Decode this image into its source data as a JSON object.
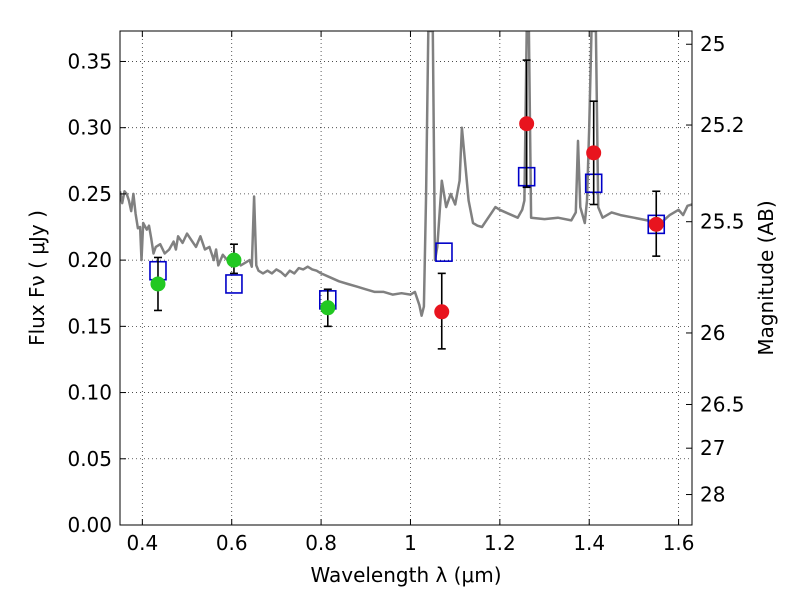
{
  "chart_data": {
    "type": "scatter",
    "xlabel": "Wavelength  λ (μm)",
    "ylabel": "Flux  Fν  ( μJy )",
    "y2label": "Magnitude (AB)",
    "xlim": [
      0.35,
      1.63
    ],
    "ylim": [
      0.0,
      0.373
    ],
    "grid": true,
    "x_ticks": [
      {
        "v": 0.4,
        "label": "0.4"
      },
      {
        "v": 0.6,
        "label": "0.6"
      },
      {
        "v": 0.8,
        "label": "0.8"
      },
      {
        "v": 1.0,
        "label": "1"
      },
      {
        "v": 1.2,
        "label": "1.2"
      },
      {
        "v": 1.4,
        "label": "1.4"
      },
      {
        "v": 1.6,
        "label": "1.6"
      }
    ],
    "y_ticks": [
      {
        "v": 0.0,
        "label": "0.00"
      },
      {
        "v": 0.05,
        "label": "0.05"
      },
      {
        "v": 0.1,
        "label": "0.10"
      },
      {
        "v": 0.15,
        "label": "0.15"
      },
      {
        "v": 0.2,
        "label": "0.20"
      },
      {
        "v": 0.25,
        "label": "0.25"
      },
      {
        "v": 0.3,
        "label": "0.30"
      },
      {
        "v": 0.35,
        "label": "0.35"
      }
    ],
    "y2_ticks": [
      {
        "flux": 0.363,
        "label": "25"
      },
      {
        "flux": 0.302,
        "label": "25.2"
      },
      {
        "flux": 0.229,
        "label": "25.5"
      },
      {
        "flux": 0.145,
        "label": "26"
      },
      {
        "flux": 0.091,
        "label": "26.5"
      },
      {
        "flux": 0.058,
        "label": "27"
      },
      {
        "flux": 0.023,
        "label": "28"
      }
    ],
    "series": [
      {
        "kind": "line",
        "color": "#808080",
        "points": [
          [
            0.35,
            0.252
          ],
          [
            0.355,
            0.243
          ],
          [
            0.36,
            0.252
          ],
          [
            0.365,
            0.25
          ],
          [
            0.37,
            0.245
          ],
          [
            0.375,
            0.237
          ],
          [
            0.38,
            0.25
          ],
          [
            0.385,
            0.235
          ],
          [
            0.39,
            0.224
          ],
          [
            0.395,
            0.225
          ],
          [
            0.398,
            0.2
          ],
          [
            0.402,
            0.228
          ],
          [
            0.41,
            0.223
          ],
          [
            0.415,
            0.226
          ],
          [
            0.42,
            0.216
          ],
          [
            0.425,
            0.205
          ],
          [
            0.43,
            0.21
          ],
          [
            0.44,
            0.212
          ],
          [
            0.45,
            0.205
          ],
          [
            0.46,
            0.208
          ],
          [
            0.47,
            0.214
          ],
          [
            0.475,
            0.208
          ],
          [
            0.48,
            0.218
          ],
          [
            0.49,
            0.213
          ],
          [
            0.5,
            0.22
          ],
          [
            0.51,
            0.215
          ],
          [
            0.52,
            0.21
          ],
          [
            0.53,
            0.218
          ],
          [
            0.54,
            0.208
          ],
          [
            0.55,
            0.21
          ],
          [
            0.56,
            0.2
          ],
          [
            0.565,
            0.208
          ],
          [
            0.57,
            0.196
          ],
          [
            0.58,
            0.204
          ],
          [
            0.59,
            0.2
          ],
          [
            0.6,
            0.198
          ],
          [
            0.61,
            0.202
          ],
          [
            0.62,
            0.196
          ],
          [
            0.63,
            0.198
          ],
          [
            0.64,
            0.2
          ],
          [
            0.645,
            0.195
          ],
          [
            0.65,
            0.248
          ],
          [
            0.655,
            0.196
          ],
          [
            0.66,
            0.192
          ],
          [
            0.67,
            0.19
          ],
          [
            0.68,
            0.192
          ],
          [
            0.69,
            0.19
          ],
          [
            0.7,
            0.193
          ],
          [
            0.71,
            0.191
          ],
          [
            0.72,
            0.188
          ],
          [
            0.73,
            0.192
          ],
          [
            0.74,
            0.19
          ],
          [
            0.75,
            0.194
          ],
          [
            0.76,
            0.193
          ],
          [
            0.77,
            0.195
          ],
          [
            0.78,
            0.193
          ],
          [
            0.79,
            0.192
          ],
          [
            0.8,
            0.19
          ],
          [
            0.82,
            0.187
          ],
          [
            0.84,
            0.184
          ],
          [
            0.86,
            0.182
          ],
          [
            0.88,
            0.18
          ],
          [
            0.9,
            0.178
          ],
          [
            0.92,
            0.176
          ],
          [
            0.94,
            0.176
          ],
          [
            0.96,
            0.174
          ],
          [
            0.98,
            0.175
          ],
          [
            1.0,
            0.174
          ],
          [
            1.01,
            0.176
          ],
          [
            1.02,
            0.166
          ],
          [
            1.025,
            0.158
          ],
          [
            1.03,
            0.165
          ],
          [
            1.035,
            0.25
          ],
          [
            1.04,
            0.373
          ],
          [
            1.05,
            0.373
          ],
          [
            1.055,
            0.2
          ],
          [
            1.06,
            0.21
          ],
          [
            1.07,
            0.26
          ],
          [
            1.08,
            0.24
          ],
          [
            1.09,
            0.25
          ],
          [
            1.1,
            0.242
          ],
          [
            1.11,
            0.26
          ],
          [
            1.115,
            0.3
          ],
          [
            1.12,
            0.282
          ],
          [
            1.13,
            0.245
          ],
          [
            1.14,
            0.228
          ],
          [
            1.15,
            0.226
          ],
          [
            1.16,
            0.225
          ],
          [
            1.17,
            0.23
          ],
          [
            1.18,
            0.235
          ],
          [
            1.19,
            0.24
          ],
          [
            1.2,
            0.238
          ],
          [
            1.22,
            0.235
          ],
          [
            1.24,
            0.232
          ],
          [
            1.25,
            0.238
          ],
          [
            1.255,
            0.245
          ],
          [
            1.26,
            0.373
          ],
          [
            1.265,
            0.373
          ],
          [
            1.27,
            0.232
          ],
          [
            1.3,
            0.231
          ],
          [
            1.33,
            0.232
          ],
          [
            1.36,
            0.23
          ],
          [
            1.37,
            0.236
          ],
          [
            1.375,
            0.29
          ],
          [
            1.38,
            0.24
          ],
          [
            1.39,
            0.228
          ],
          [
            1.395,
            0.245
          ],
          [
            1.4,
            0.3
          ],
          [
            1.405,
            0.373
          ],
          [
            1.415,
            0.373
          ],
          [
            1.42,
            0.24
          ],
          [
            1.43,
            0.232
          ],
          [
            1.45,
            0.236
          ],
          [
            1.47,
            0.234
          ],
          [
            1.5,
            0.232
          ],
          [
            1.53,
            0.23
          ],
          [
            1.56,
            0.228
          ],
          [
            1.58,
            0.234
          ],
          [
            1.6,
            0.238
          ],
          [
            1.61,
            0.234
          ],
          [
            1.62,
            0.241
          ],
          [
            1.63,
            0.242
          ]
        ]
      },
      {
        "kind": "squares",
        "color": "#0000c8",
        "points": [
          [
            0.435,
            0.192
          ],
          [
            0.605,
            0.182
          ],
          [
            0.815,
            0.17
          ],
          [
            1.075,
            0.206
          ],
          [
            1.26,
            0.263
          ],
          [
            1.41,
            0.258
          ],
          [
            1.55,
            0.227
          ]
        ]
      },
      {
        "kind": "points",
        "color": "#22c822",
        "points": [
          {
            "x": 0.435,
            "y": 0.182,
            "lo": 0.162,
            "hi": 0.202
          },
          {
            "x": 0.605,
            "y": 0.2,
            "lo": 0.19,
            "hi": 0.212
          },
          {
            "x": 0.815,
            "y": 0.164,
            "lo": 0.15,
            "hi": 0.178
          }
        ]
      },
      {
        "kind": "points",
        "color": "#e8141e",
        "points": [
          {
            "x": 1.07,
            "y": 0.161,
            "lo": 0.133,
            "hi": 0.19
          },
          {
            "x": 1.26,
            "y": 0.303,
            "lo": 0.255,
            "hi": 0.351
          },
          {
            "x": 1.41,
            "y": 0.281,
            "lo": 0.242,
            "hi": 0.32
          },
          {
            "x": 1.55,
            "y": 0.227,
            "lo": 0.203,
            "hi": 0.252
          }
        ]
      }
    ]
  }
}
